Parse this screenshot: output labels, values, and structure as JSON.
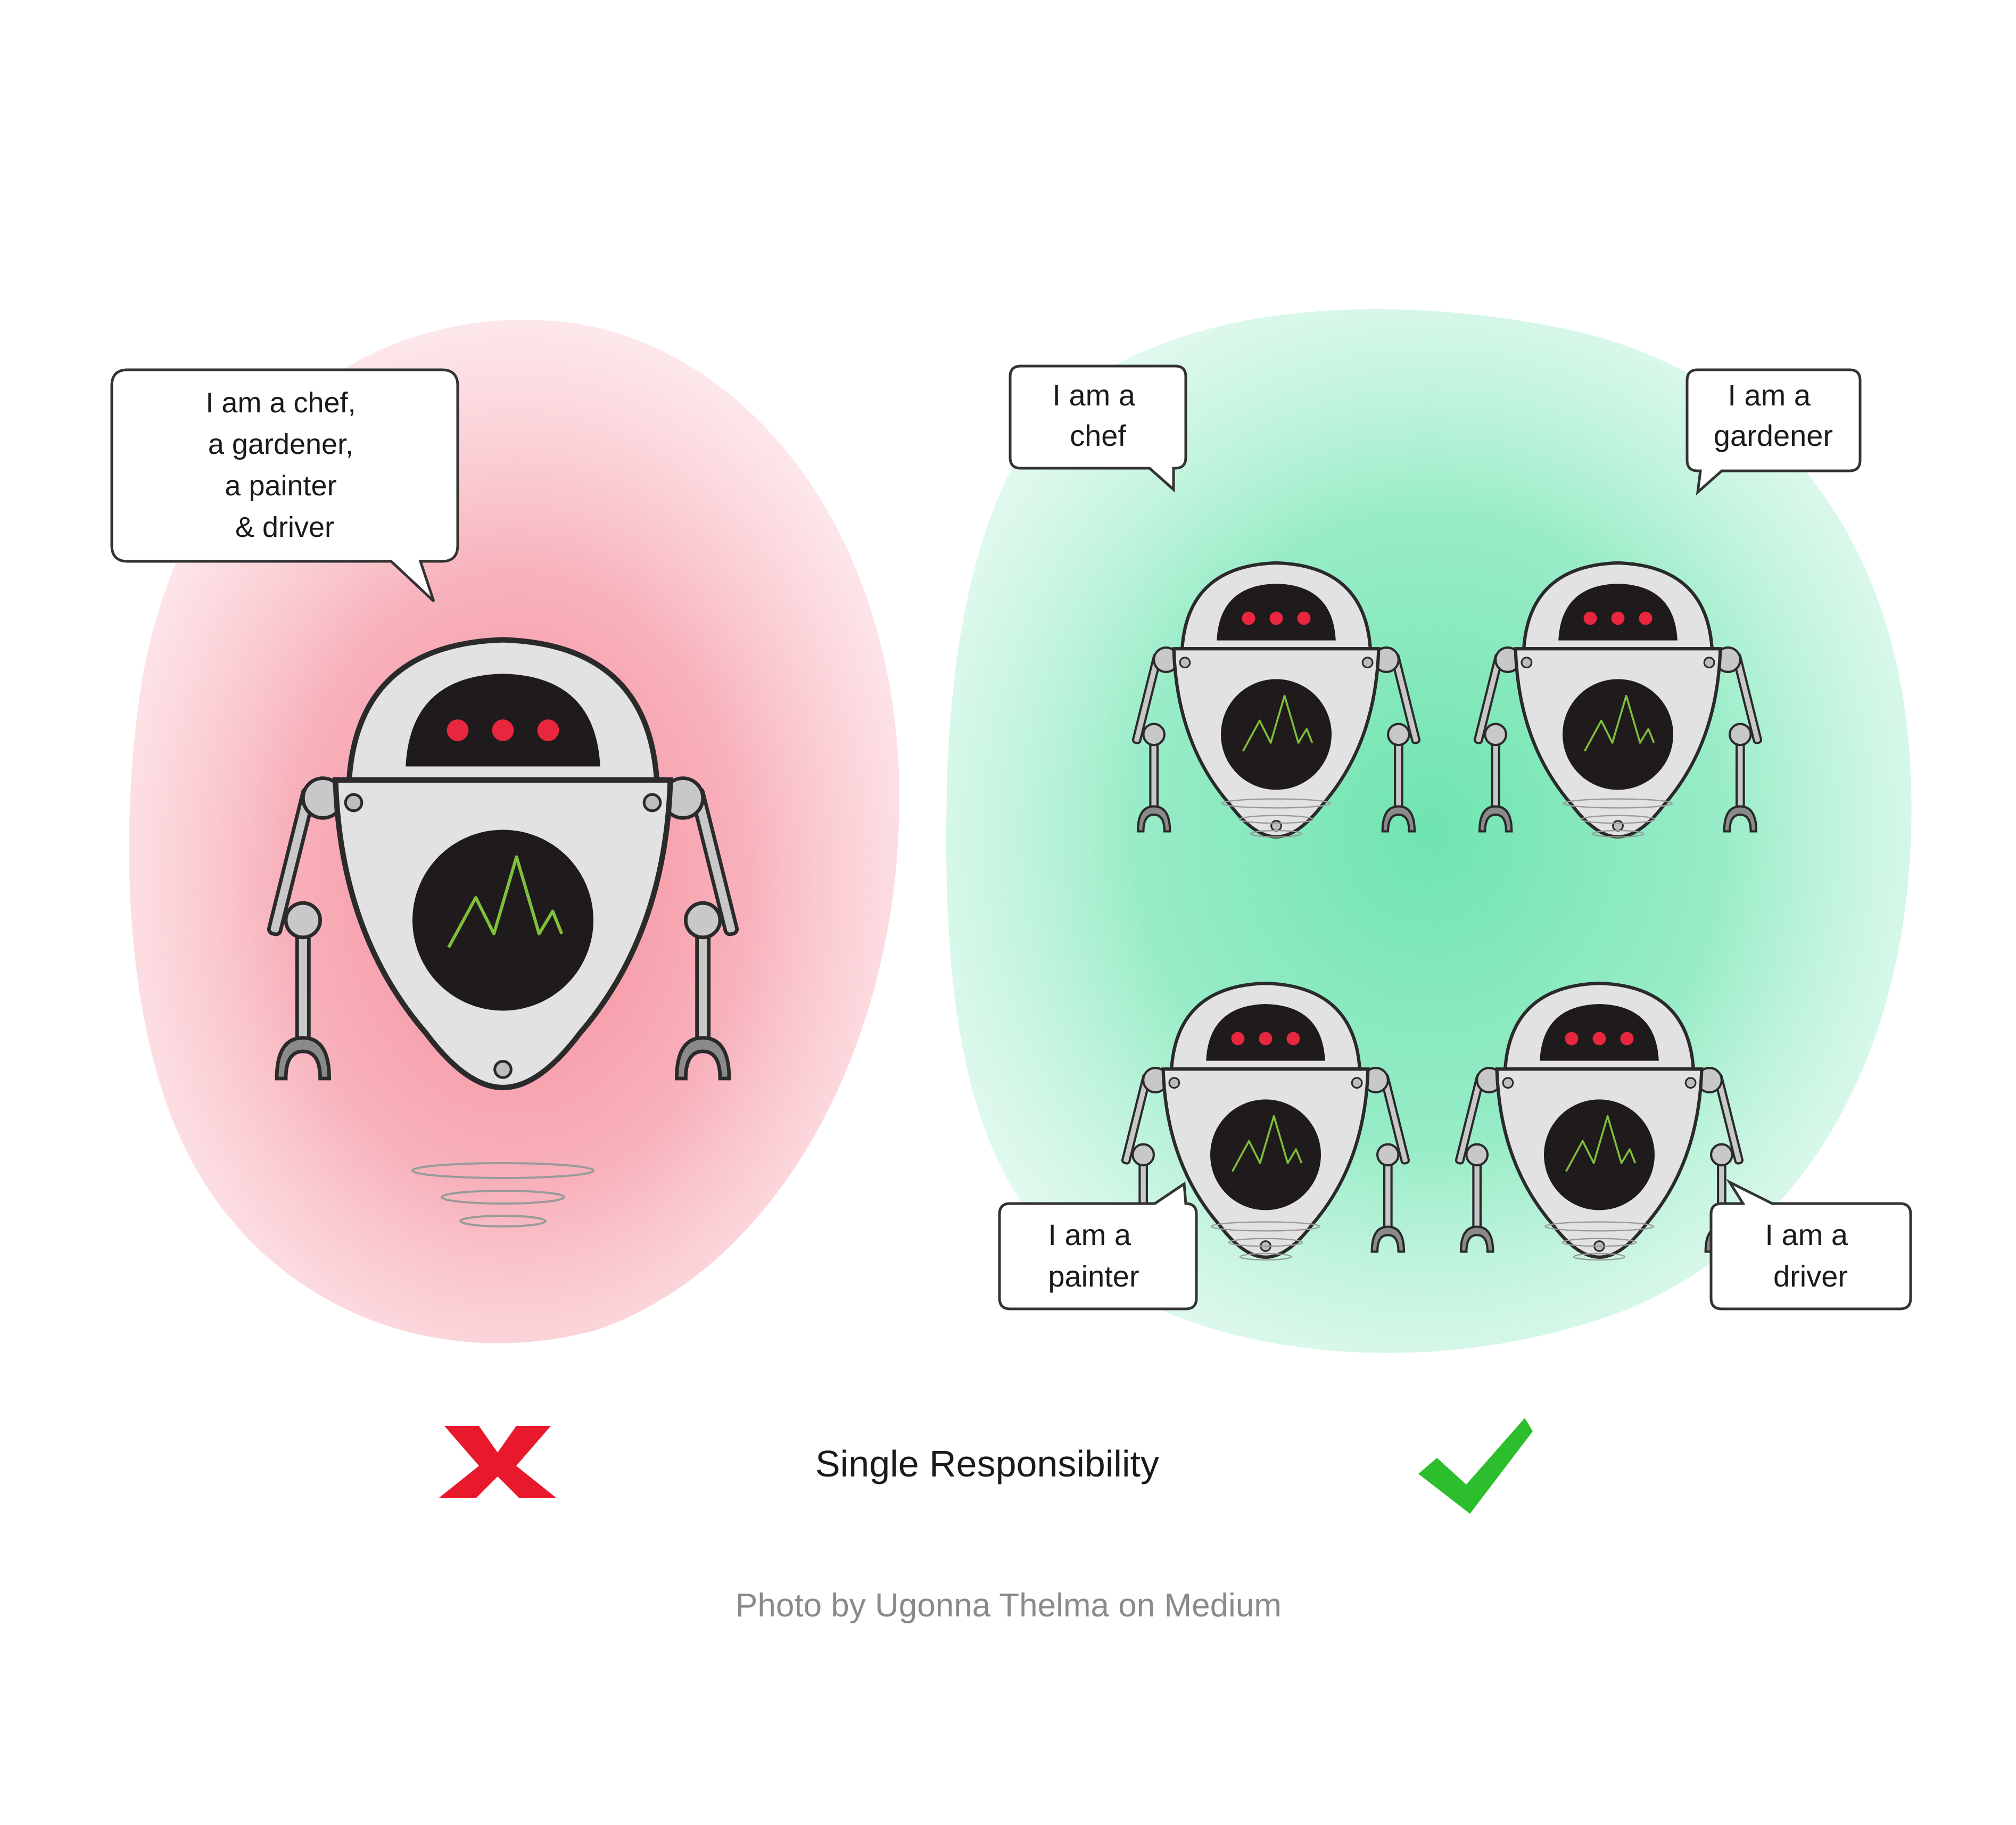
{
  "colors": {
    "bad_blob": "#f5a3ae",
    "good_blob": "#8ce9bf",
    "cross": "#e8192c",
    "check": "#2dbe2d",
    "robot_body": "#e2e2e2",
    "robot_dark": "#1f1a1c",
    "robot_eye": "#e8263e",
    "screen_line": "#7fbf3a",
    "outline": "#2a2a2a"
  },
  "left_panel": {
    "speech_lines": [
      "I am a chef,",
      "a gardener,",
      "a painter",
      "& driver"
    ],
    "verdict_icon": "cross-icon"
  },
  "right_panel": {
    "robots": [
      {
        "speech_lines": [
          "I am a",
          "chef"
        ]
      },
      {
        "speech_lines": [
          "I am a",
          "gardener"
        ]
      },
      {
        "speech_lines": [
          "I am a",
          "painter"
        ]
      },
      {
        "speech_lines": [
          "I am a",
          "driver"
        ]
      }
    ],
    "verdict_icon": "check-icon"
  },
  "title": "Single Responsibility",
  "caption": "Photo by Ugonna Thelma on Medium"
}
